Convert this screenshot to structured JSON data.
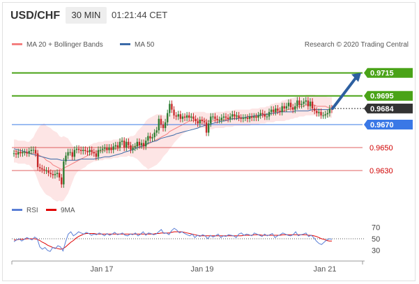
{
  "header": {
    "pair": "USD/CHF",
    "timeframe": "30 MIN",
    "clock": "01:21:44 CET"
  },
  "legend": {
    "bollinger": "MA 20 + Bollinger Bands",
    "ma50": "MA 50",
    "credit": "Research © 2020 Trading Central",
    "rsi": "RSI",
    "ma9": "9MA"
  },
  "colors": {
    "candle_up": "#2e7d32",
    "candle_down": "#c62828",
    "band_fill": "#fde0e0",
    "band_line": "#f48080",
    "ma50": "#3b6aa8",
    "target_green": "#4aa318",
    "pivot_blue": "#3a78e6",
    "support_red": "#e06060",
    "current_dark": "#333333",
    "arrow": "#2d5fa0",
    "rsi_line": "#5a7fd6",
    "ma9_line": "#e00000"
  },
  "chart_data": {
    "type": "candlestick",
    "ylim": [
      0.9607,
      0.9733
    ],
    "x_ticks": [
      "Jan 17",
      "Jan 19",
      "Jan 21"
    ],
    "levels": [
      {
        "value": 0.9715,
        "label": "0.9715",
        "kind": "target"
      },
      {
        "value": 0.9695,
        "label": "0.9695",
        "kind": "target"
      },
      {
        "value": 0.9684,
        "label": "0.9684",
        "kind": "current"
      },
      {
        "value": 0.967,
        "label": "0.9670",
        "kind": "pivot"
      },
      {
        "value": 0.965,
        "label": "0.9650",
        "kind": "support"
      },
      {
        "value": 0.963,
        "label": "0.9630",
        "kind": "support"
      }
    ],
    "close_series": [
      0.9645,
      0.9644,
      0.9646,
      0.9645,
      0.9646,
      0.9646,
      0.9645,
      0.9647,
      0.9648,
      0.9648,
      0.9645,
      0.9633,
      0.9632,
      0.9631,
      0.963,
      0.963,
      0.9628,
      0.9627,
      0.9626,
      0.9627,
      0.9628,
      0.9624,
      0.9618,
      0.9638,
      0.9643,
      0.9646,
      0.9646,
      0.9642,
      0.9648,
      0.9649,
      0.9648,
      0.9647,
      0.9648,
      0.9647,
      0.9646,
      0.9648,
      0.9646,
      0.9645,
      0.9642,
      0.9648,
      0.9648,
      0.9649,
      0.965,
      0.9648,
      0.965,
      0.9648,
      0.9651,
      0.9652,
      0.965,
      0.9655,
      0.9656,
      0.965,
      0.9655,
      0.9652,
      0.9648,
      0.965,
      0.9651,
      0.9655,
      0.9652,
      0.9654,
      0.9651,
      0.9656,
      0.966,
      0.9658,
      0.9659,
      0.9663,
      0.9665,
      0.9675,
      0.967,
      0.9667,
      0.9672,
      0.968,
      0.9688,
      0.9683,
      0.9678,
      0.9677,
      0.9679,
      0.9675,
      0.9677,
      0.9676,
      0.9678,
      0.9676,
      0.9677,
      0.9675,
      0.9673,
      0.9671,
      0.9674,
      0.9673,
      0.9672,
      0.9663,
      0.9671,
      0.9677,
      0.9677,
      0.9675,
      0.9674,
      0.9674,
      0.9676,
      0.9677,
      0.9676,
      0.9675,
      0.9677,
      0.9679,
      0.9677,
      0.9678,
      0.9676,
      0.9675,
      0.9676,
      0.9676,
      0.9675,
      0.9677,
      0.9676,
      0.9677,
      0.9676,
      0.9678,
      0.968,
      0.9679,
      0.9677,
      0.9677,
      0.9681,
      0.9683,
      0.9681,
      0.9684,
      0.9682,
      0.9681,
      0.9686,
      0.9684,
      0.9686,
      0.9689,
      0.9685,
      0.9683,
      0.9686,
      0.9691,
      0.9687,
      0.9688,
      0.969,
      0.9691,
      0.9686,
      0.969,
      0.9684,
      0.9682,
      0.968,
      0.9681,
      0.9678,
      0.9678,
      0.9679,
      0.968,
      0.9684,
      0.9683
    ],
    "ma20_series": [
      0.9647,
      0.9647,
      0.9646,
      0.9646,
      0.9646,
      0.9646,
      0.9645,
      0.9645,
      0.9645,
      0.9645,
      0.9645,
      0.9644,
      0.9643,
      0.9642,
      0.9641,
      0.9639,
      0.9638,
      0.9637,
      0.9635,
      0.9634,
      0.9633,
      0.9632,
      0.9631,
      0.9632,
      0.9633,
      0.9634,
      0.9635,
      0.9636,
      0.9637,
      0.9638,
      0.9639,
      0.964,
      0.9641,
      0.9642,
      0.9643,
      0.9644,
      0.9645,
      0.9646,
      0.9646,
      0.9647,
      0.9647,
      0.9647,
      0.9648,
      0.9648,
      0.9648,
      0.9648,
      0.9649,
      0.9649,
      0.9649,
      0.965,
      0.965,
      0.965,
      0.965,
      0.9651,
      0.9651,
      0.9651,
      0.9651,
      0.9652,
      0.9652,
      0.9652,
      0.9652,
      0.9653,
      0.9653,
      0.9654,
      0.9655,
      0.9656,
      0.9657,
      0.9658,
      0.9659,
      0.966,
      0.9661,
      0.9662,
      0.9664,
      0.9665,
      0.9666,
      0.9667,
      0.9668,
      0.9669,
      0.967,
      0.9671,
      0.9672,
      0.9673,
      0.9673,
      0.9674,
      0.9674,
      0.9674,
      0.9674,
      0.9674,
      0.9674,
      0.9673,
      0.9673,
      0.9673,
      0.9673,
      0.9674,
      0.9674,
      0.9674,
      0.9674,
      0.9674,
      0.9675,
      0.9675,
      0.9675,
      0.9675,
      0.9676,
      0.9676,
      0.9676,
      0.9676,
      0.9676,
      0.9676,
      0.9676,
      0.9676,
      0.9677,
      0.9677,
      0.9677,
      0.9677,
      0.9678,
      0.9678,
      0.9678,
      0.9679,
      0.9679,
      0.968,
      0.968,
      0.9681,
      0.9681,
      0.9681,
      0.9682,
      0.9682,
      0.9683,
      0.9683,
      0.9684,
      0.9684,
      0.9685,
      0.9685,
      0.9686,
      0.9686,
      0.9686,
      0.9687,
      0.9687,
      0.9687,
      0.9687,
      0.9687,
      0.9686,
      0.9686,
      0.9686,
      0.9686,
      0.9686,
      0.9685,
      0.9685,
      0.9685,
      0.9684
    ],
    "band_width_series": [
      0.001,
      0.001,
      0.001,
      0.001,
      0.001,
      0.001,
      0.001,
      0.001,
      0.0012,
      0.0014,
      0.0018,
      0.0022,
      0.0026,
      0.0028,
      0.003,
      0.003,
      0.003,
      0.003,
      0.003,
      0.003,
      0.003,
      0.0028,
      0.0028,
      0.0028,
      0.0026,
      0.0024,
      0.002,
      0.0016,
      0.0012,
      0.001,
      0.0009,
      0.0009,
      0.0009,
      0.0009,
      0.0008,
      0.0008,
      0.0008,
      0.0008,
      0.0008,
      0.0008,
      0.0008,
      0.0008,
      0.0008,
      0.0008,
      0.0008,
      0.0008,
      0.0008,
      0.0008,
      0.0008,
      0.0008,
      0.0008,
      0.0008,
      0.0008,
      0.0008,
      0.0009,
      0.0009,
      0.001,
      0.0012,
      0.0014,
      0.0016,
      0.0018,
      0.002,
      0.0022,
      0.0022,
      0.0022,
      0.0022,
      0.0022,
      0.0021,
      0.002,
      0.0018,
      0.0017,
      0.0016,
      0.0015,
      0.0014,
      0.0012,
      0.0011,
      0.001,
      0.0009,
      0.0008,
      0.0008,
      0.0007,
      0.0007,
      0.0007,
      0.0007,
      0.0007,
      0.0007,
      0.0007,
      0.0007,
      0.0007,
      0.0007,
      0.0007,
      0.0007,
      0.0007,
      0.0007,
      0.0007,
      0.0007,
      0.0007,
      0.0007,
      0.0007,
      0.0007,
      0.0007,
      0.0007,
      0.0007,
      0.0007,
      0.0007,
      0.0007,
      0.0007,
      0.0007,
      0.0007,
      0.0007,
      0.0007,
      0.0007,
      0.0007,
      0.0007,
      0.0007,
      0.0007,
      0.0007,
      0.0007,
      0.0007,
      0.0008,
      0.0008,
      0.0008,
      0.0008,
      0.0008,
      0.0009,
      0.0009,
      0.0009,
      0.0009,
      0.0009,
      0.0009,
      0.0009,
      0.0009,
      0.0009,
      0.0009,
      0.0009,
      0.0009,
      0.0009,
      0.0009,
      0.0009,
      0.0009,
      0.0009,
      0.0009,
      0.0009,
      0.0009,
      0.0009,
      0.0009,
      0.0009,
      0.0009,
      0.0009,
      0.0009
    ],
    "ma50_series": [
      0.9649,
      0.9648,
      0.9647,
      0.9646,
      0.9645,
      0.9644,
      0.9643,
      0.9642,
      0.9641,
      0.964,
      0.964,
      0.964,
      0.9639,
      0.9639,
      0.9639,
      0.9639,
      0.9639,
      0.964,
      0.964,
      0.964,
      0.964,
      0.9641,
      0.9641,
      0.9642,
      0.9642,
      0.9643,
      0.9644,
      0.9645,
      0.9646,
      0.9647,
      0.9648,
      0.965,
      0.9651,
      0.9652,
      0.9654,
      0.9655,
      0.9656,
      0.9658,
      0.9659,
      0.966,
      0.9661,
      0.9662,
      0.9663,
      0.9664,
      0.9665,
      0.9666,
      0.9667,
      0.9668,
      0.9669,
      0.967,
      0.9671,
      0.9672,
      0.9673,
      0.9673,
      0.9674,
      0.9675,
      0.9675,
      0.9676,
      0.9676,
      0.9677,
      0.9677,
      0.9678,
      0.9678,
      0.9679,
      0.9679,
      0.968,
      0.968,
      0.9681,
      0.9681,
      0.9681,
      0.9681,
      0.9682,
      0.9682,
      0.9682,
      0.9682,
      0.9683,
      0.9683,
      0.9683,
      0.9683,
      0.9683,
      0.9684
    ],
    "rsi": {
      "ylim": [
        20,
        80
      ],
      "ticks": [
        70,
        50,
        30
      ],
      "rsi_series": [
        45,
        48,
        50,
        46,
        49,
        52,
        50,
        48,
        53,
        50,
        36,
        32,
        35,
        30,
        28,
        35,
        33,
        38,
        36,
        29,
        45,
        58,
        62,
        55,
        58,
        62,
        60,
        58,
        61,
        59,
        56,
        58,
        57,
        60,
        58,
        55,
        59,
        56,
        58,
        61,
        57,
        58,
        60,
        56,
        55,
        58,
        57,
        60,
        55,
        58,
        62,
        56,
        60,
        59,
        57,
        58,
        62,
        66,
        59,
        60,
        57,
        64,
        68,
        65,
        60,
        62,
        59,
        57,
        55,
        58,
        52,
        56,
        54,
        57,
        55,
        50,
        56,
        53,
        55,
        58,
        52,
        55,
        54,
        57,
        56,
        55,
        52,
        58,
        60,
        56,
        58,
        57,
        55,
        60,
        58,
        56,
        54,
        58,
        55,
        57,
        59,
        52,
        55,
        57,
        60,
        58,
        56,
        55,
        57,
        62,
        55,
        57,
        58,
        60,
        54,
        56,
        52,
        46,
        42,
        40,
        44,
        48,
        50,
        49
      ],
      "ma9_series": [
        48,
        48,
        49,
        49,
        49,
        50,
        50,
        50,
        50,
        49,
        47,
        44,
        42,
        39,
        37,
        35,
        34,
        33,
        32,
        33,
        36,
        40,
        44,
        47,
        51,
        54,
        56,
        58,
        59,
        59,
        59,
        59,
        58,
        58,
        58,
        58,
        58,
        58,
        58,
        58,
        58,
        58,
        58,
        58,
        58,
        58,
        58,
        58,
        58,
        58,
        58,
        58,
        58,
        58,
        58,
        59,
        59,
        60,
        60,
        60,
        60,
        61,
        62,
        62,
        62,
        62,
        61,
        60,
        59,
        58,
        57,
        56,
        55,
        55,
        55,
        55,
        55,
        55,
        55,
        55,
        55,
        55,
        55,
        55,
        55,
        55,
        55,
        55,
        55,
        56,
        56,
        56,
        56,
        57,
        57,
        57,
        56,
        56,
        56,
        56,
        56,
        56,
        56,
        56,
        57,
        57,
        57,
        57,
        57,
        57,
        57,
        57,
        57,
        57,
        56,
        56,
        55,
        54,
        52,
        50,
        49,
        47,
        46,
        46
      ],
      "reference_value": 50
    }
  }
}
